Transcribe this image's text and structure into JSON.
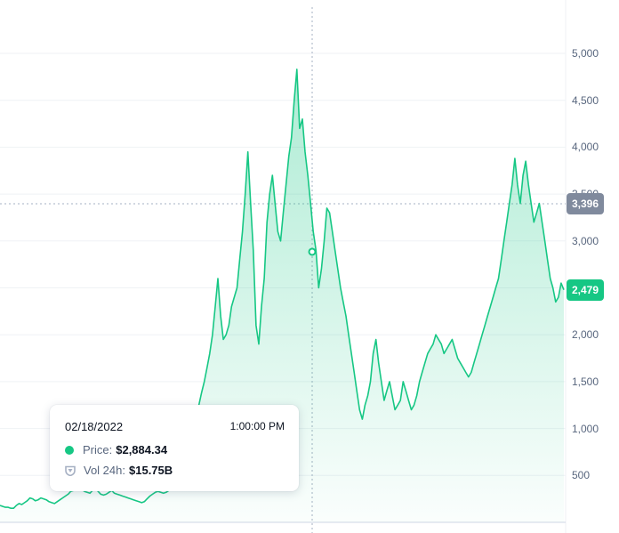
{
  "chart_data": {
    "type": "area",
    "x_unit": "index",
    "values": [
      180,
      170,
      160,
      160,
      150,
      150,
      180,
      200,
      190,
      210,
      230,
      260,
      250,
      230,
      240,
      260,
      250,
      240,
      220,
      210,
      200,
      220,
      240,
      260,
      280,
      300,
      330,
      340,
      380,
      400,
      350,
      330,
      320,
      310,
      340,
      360,
      330,
      300,
      290,
      300,
      320,
      340,
      310,
      300,
      290,
      280,
      270,
      260,
      250,
      240,
      230,
      220,
      210,
      220,
      250,
      280,
      300,
      320,
      330,
      320,
      310,
      320,
      340,
      360,
      380,
      420,
      470,
      520,
      600,
      700,
      820,
      950,
      1100,
      1250,
      1380,
      1500,
      1650,
      1800,
      2000,
      2300,
      2600,
      2200,
      1950,
      2000,
      2100,
      2300,
      2400,
      2500,
      2800,
      3100,
      3500,
      3950,
      3400,
      2900,
      2100,
      1900,
      2300,
      2600,
      3200,
      3500,
      3700,
      3400,
      3100,
      3000,
      3300,
      3600,
      3900,
      4100,
      4500,
      4830,
      4200,
      4300,
      3950,
      3700,
      3400,
      3100,
      2900,
      2500,
      2700,
      3000,
      3350,
      3300,
      3100,
      2900,
      2700,
      2500,
      2350,
      2200,
      2000,
      1800,
      1600,
      1400,
      1200,
      1100,
      1250,
      1350,
      1500,
      1800,
      1950,
      1700,
      1500,
      1300,
      1400,
      1500,
      1350,
      1200,
      1250,
      1300,
      1500,
      1400,
      1300,
      1200,
      1250,
      1350,
      1500,
      1600,
      1700,
      1800,
      1850,
      1900,
      2000,
      1950,
      1900,
      1800,
      1850,
      1900,
      1950,
      1850,
      1750,
      1700,
      1650,
      1600,
      1550,
      1600,
      1700,
      1800,
      1900,
      2000,
      2100,
      2200,
      2300,
      2400,
      2500,
      2600,
      2800,
      3000,
      3200,
      3400,
      3600,
      3880,
      3600,
      3400,
      3700,
      3850,
      3600,
      3400,
      3200,
      3300,
      3400,
      3200,
      3000,
      2800,
      2600,
      2500,
      2350,
      2400,
      2550,
      2479
    ],
    "ylim": [
      0,
      5500
    ],
    "y_ticks": [
      "500",
      "1,000",
      "1,500",
      "2,000",
      "2,500",
      "3,000",
      "3,500",
      "4,000",
      "4,500",
      "5,000"
    ],
    "grid": true,
    "current_price_label": "2,479",
    "hover_price_label": "3,396",
    "line_color": "#16c784",
    "hover_tag_color": "#808a9d",
    "price_tag_color": "#16c784"
  },
  "tooltip": {
    "date": "02/18/2022",
    "time": "1:00:00 PM",
    "price_label": "Price:",
    "price_value": "$2,884.34",
    "volume_label": "Vol 24h:",
    "volume_value": "$15.75B"
  }
}
